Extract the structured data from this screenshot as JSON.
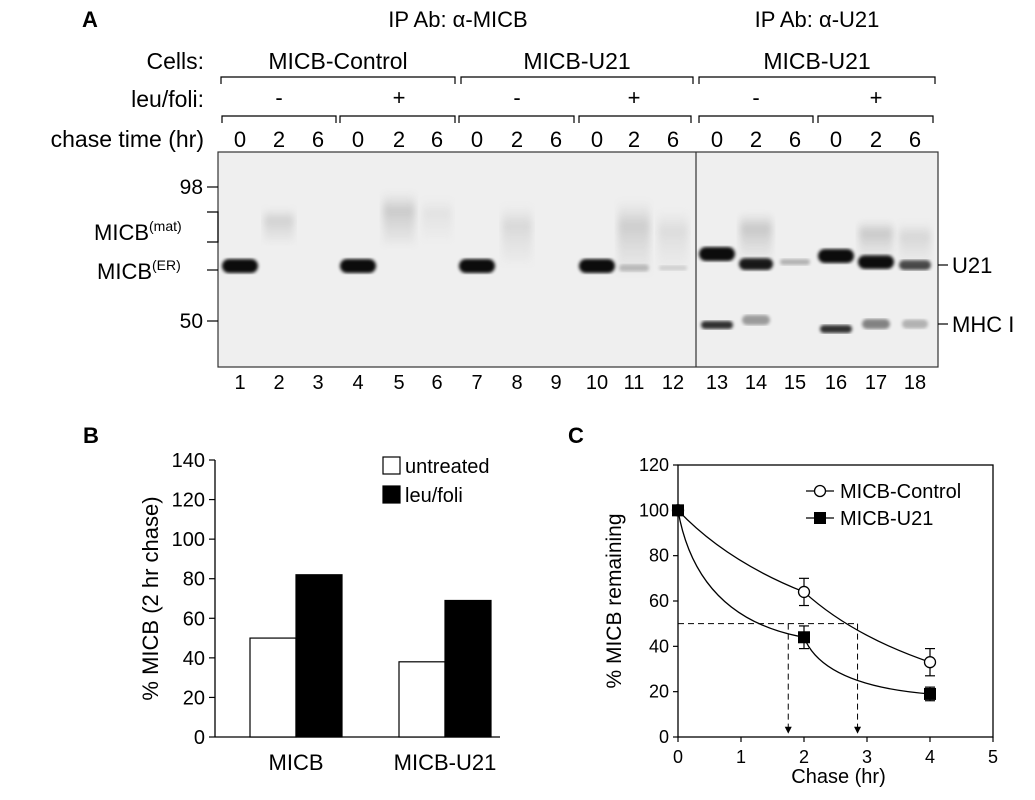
{
  "panel_a": {
    "letter": "A",
    "ip_label_1": "IP Ab: α-MICB",
    "ip_label_2": "IP Ab: α-U21",
    "row_cells": "Cells:",
    "row_leu": "leu/foli:",
    "row_chase": "chase time (hr)",
    "cell_groups": [
      "MICB-Control",
      "MICB-U21",
      "MICB-U21"
    ],
    "leu_marks": [
      "-",
      "+",
      "-",
      "+",
      "-",
      "+"
    ],
    "chase_times": [
      "0",
      "2",
      "6",
      "0",
      "2",
      "6",
      "0",
      "2",
      "6",
      "0",
      "2",
      "6",
      "0",
      "2",
      "6",
      "0",
      "2",
      "6"
    ],
    "lane_numbers": [
      "1",
      "2",
      "3",
      "4",
      "5",
      "6",
      "7",
      "8",
      "9",
      "10",
      "11",
      "12",
      "13",
      "14",
      "15",
      "16",
      "17",
      "18"
    ],
    "marker_98": "98",
    "marker_50": "50",
    "micb_mat_main": "MICB",
    "micb_mat_sup": "(mat)",
    "micb_er_main": "MICB",
    "micb_er_sup": "(ER)",
    "label_u21": "U21",
    "label_mhc": "MHC I"
  },
  "chart_data": [
    {
      "panel": "B",
      "type": "bar",
      "categories": [
        "MICB",
        "MICB-U21"
      ],
      "series": [
        {
          "name": "untreated",
          "values": [
            50,
            38
          ],
          "color": "#ffffff"
        },
        {
          "name": "leu/foli",
          "values": [
            82,
            69
          ],
          "color": "#000000"
        }
      ],
      "ylabel": "% MICB (2 hr chase)",
      "xlabel": "",
      "ylim": [
        0,
        140
      ],
      "yticks": [
        "0",
        "20",
        "40",
        "60",
        "80",
        "100",
        "120",
        "140"
      ],
      "legend": "top-right",
      "grid": false
    },
    {
      "panel": "C",
      "type": "line",
      "series": [
        {
          "name": "MICB-Control",
          "marker": "open-circle",
          "x": [
            0,
            2,
            4
          ],
          "y": [
            100,
            64,
            33
          ],
          "err": [
            0,
            6,
            6
          ]
        },
        {
          "name": "MICB-U21",
          "marker": "filled-square",
          "x": [
            0,
            2,
            4
          ],
          "y": [
            100,
            44,
            19
          ],
          "err": [
            0,
            5,
            3
          ]
        }
      ],
      "xlabel": "Chase (hr)",
      "ylabel": "% MICB remaining",
      "xlim": [
        0,
        5
      ],
      "ylim": [
        0,
        120
      ],
      "xticks": [
        "0",
        "1",
        "2",
        "3",
        "4",
        "5"
      ],
      "yticks": [
        "0",
        "20",
        "40",
        "60",
        "80",
        "100",
        "120"
      ],
      "half_life_y": 50,
      "half_life_x": [
        1.75,
        2.85
      ],
      "legend": "top-right",
      "grid": false
    }
  ]
}
